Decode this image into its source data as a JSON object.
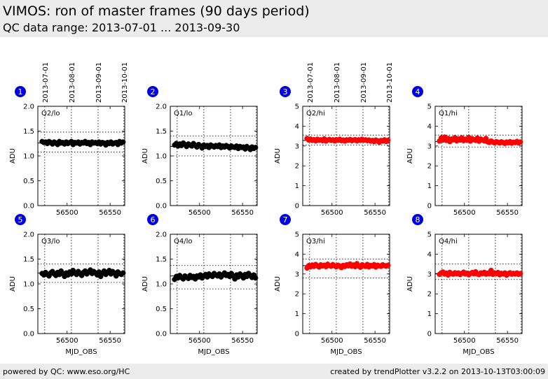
{
  "header": {
    "title": "VIMOS: ron of master frames (90 days period)",
    "subtitle": "QC data range: 2013-07-01 ... 2013-09-30"
  },
  "footer": {
    "left": "powered by QC: www.eso.org/HC",
    "right": "created by trendPlotter v3.2.2 on 2013-10-13T03:00:09"
  },
  "colors": {
    "badge": "#0000e6",
    "black_series": "#000000",
    "red_series": "#ff0000"
  },
  "chart_data": [
    {
      "type": "scatter",
      "badge": "1",
      "panel_label": "Q2/lo",
      "series_color": "#000000",
      "ylabel": "ADU",
      "xlabel": "",
      "ylim": [
        0,
        2.0
      ],
      "yticks": [
        "0.0",
        "0.5",
        "1.0",
        "1.5",
        "2.0"
      ],
      "xlim": [
        56466,
        56567
      ],
      "xticks": [
        56500,
        56550
      ],
      "xticklabels": [
        "56500",
        "56550"
      ],
      "top_date_labels": [
        "2013-07-01",
        "2013-08-01",
        "2013-09-01",
        "2013-10-01"
      ],
      "top_date_mjd": [
        56474,
        56505,
        56536,
        56566
      ],
      "median": 1.26,
      "upper": 1.48,
      "lower": 1.08,
      "x": [
        56471,
        56473,
        56475,
        56477,
        56479,
        56481,
        56483,
        56485,
        56487,
        56489,
        56491,
        56493,
        56495,
        56497,
        56499,
        56501,
        56503,
        56505,
        56507,
        56509,
        56511,
        56513,
        56515,
        56517,
        56519,
        56521,
        56523,
        56525,
        56527,
        56529,
        56531,
        56533,
        56535,
        56537,
        56539,
        56541,
        56543,
        56545,
        56547,
        56549,
        56551,
        56553,
        56555,
        56557,
        56559,
        56561,
        56563,
        56565
      ],
      "y": [
        1.29,
        1.27,
        1.28,
        1.25,
        1.29,
        1.27,
        1.24,
        1.28,
        1.26,
        1.23,
        1.29,
        1.26,
        1.27,
        1.24,
        1.28,
        1.25,
        1.27,
        1.29,
        1.23,
        1.27,
        1.26,
        1.28,
        1.24,
        1.27,
        1.26,
        1.29,
        1.25,
        1.27,
        1.23,
        1.28,
        1.26,
        1.27,
        1.25,
        1.28,
        1.24,
        1.27,
        1.26,
        1.22,
        1.27,
        1.25,
        1.28,
        1.24,
        1.26,
        1.27,
        1.23,
        1.29,
        1.26,
        1.28
      ]
    },
    {
      "type": "scatter",
      "badge": "2",
      "panel_label": "Q1/lo",
      "series_color": "#000000",
      "ylabel": "ADU",
      "xlabel": "",
      "ylim": [
        0,
        2.0
      ],
      "yticks": [
        "0.0",
        "0.5",
        "1.0",
        "1.5",
        "2.0"
      ],
      "xlim": [
        56466,
        56567
      ],
      "xticks": [
        56500,
        56550
      ],
      "xticklabels": [
        "56500",
        "56550"
      ],
      "top_date_labels": [],
      "top_date_mjd": [
        56474,
        56505,
        56536,
        56566
      ],
      "median": 1.19,
      "upper": 1.4,
      "lower": 1.0,
      "x": [
        56471,
        56473,
        56475,
        56477,
        56479,
        56481,
        56483,
        56485,
        56487,
        56489,
        56491,
        56493,
        56495,
        56497,
        56499,
        56501,
        56503,
        56505,
        56507,
        56509,
        56511,
        56513,
        56515,
        56517,
        56519,
        56521,
        56523,
        56525,
        56527,
        56529,
        56531,
        56533,
        56535,
        56537,
        56539,
        56541,
        56543,
        56545,
        56547,
        56549,
        56551,
        56553,
        56555,
        56557,
        56559,
        56561,
        56563,
        56565
      ],
      "y": [
        1.22,
        1.25,
        1.2,
        1.24,
        1.21,
        1.26,
        1.23,
        1.19,
        1.24,
        1.22,
        1.2,
        1.25,
        1.21,
        1.18,
        1.23,
        1.2,
        1.16,
        1.22,
        1.19,
        1.21,
        1.17,
        1.22,
        1.2,
        1.18,
        1.21,
        1.19,
        1.22,
        1.17,
        1.2,
        1.18,
        1.21,
        1.19,
        1.16,
        1.2,
        1.18,
        1.17,
        1.2,
        1.15,
        1.19,
        1.17,
        1.18,
        1.14,
        1.19,
        1.16,
        1.13,
        1.18,
        1.15,
        1.17
      ]
    },
    {
      "type": "scatter",
      "badge": "3",
      "panel_label": "Q2/hi",
      "series_color": "#ff0000",
      "ylabel": "ADU",
      "xlabel": "",
      "ylim": [
        0,
        5
      ],
      "yticks": [
        "0",
        "1",
        "2",
        "3",
        "4",
        "5"
      ],
      "xlim": [
        56466,
        56567
      ],
      "xticks": [
        56500,
        56550
      ],
      "xticklabels": [
        "56500",
        "56550"
      ],
      "top_date_labels": [
        "2013-07-01",
        "2013-08-01",
        "2013-09-01",
        "2013-10-01"
      ],
      "top_date_mjd": [
        56474,
        56505,
        56536,
        56566
      ],
      "median": 3.28,
      "upper": 3.55,
      "lower": 3.05,
      "x": [
        56471,
        56473,
        56475,
        56477,
        56479,
        56481,
        56483,
        56485,
        56487,
        56489,
        56491,
        56493,
        56495,
        56497,
        56499,
        56501,
        56503,
        56505,
        56507,
        56509,
        56511,
        56513,
        56515,
        56517,
        56519,
        56521,
        56523,
        56525,
        56527,
        56529,
        56531,
        56533,
        56535,
        56537,
        56539,
        56541,
        56543,
        56545,
        56547,
        56549,
        56551,
        56553,
        56555,
        56557,
        56559,
        56561,
        56563,
        56565
      ],
      "y": [
        3.38,
        3.3,
        3.35,
        3.28,
        3.32,
        3.26,
        3.34,
        3.29,
        3.31,
        3.27,
        3.36,
        3.25,
        3.3,
        3.33,
        3.28,
        3.31,
        3.26,
        3.32,
        3.29,
        3.34,
        3.27,
        3.3,
        3.25,
        3.31,
        3.29,
        3.33,
        3.27,
        3.3,
        3.32,
        3.26,
        3.31,
        3.28,
        3.34,
        3.29,
        3.31,
        3.27,
        3.3,
        3.25,
        3.28,
        3.22,
        3.3,
        3.26,
        3.19,
        3.28,
        3.25,
        3.31,
        3.23,
        3.29
      ]
    },
    {
      "type": "scatter",
      "badge": "4",
      "panel_label": "Q1/hi",
      "series_color": "#ff0000",
      "ylabel": "ADU",
      "xlabel": "",
      "ylim": [
        0,
        5
      ],
      "yticks": [
        "0",
        "1",
        "2",
        "3",
        "4",
        "5"
      ],
      "xlim": [
        56466,
        56567
      ],
      "xticks": [
        56500,
        56550
      ],
      "xticklabels": [
        "56500",
        "56550"
      ],
      "top_date_labels": [],
      "top_date_mjd": [
        56474,
        56505,
        56536,
        56566
      ],
      "median": 3.22,
      "upper": 3.55,
      "lower": 2.95,
      "x": [
        56471,
        56473,
        56475,
        56477,
        56479,
        56481,
        56483,
        56485,
        56487,
        56489,
        56491,
        56493,
        56495,
        56497,
        56499,
        56501,
        56503,
        56505,
        56507,
        56509,
        56511,
        56513,
        56515,
        56517,
        56519,
        56521,
        56523,
        56525,
        56527,
        56529,
        56531,
        56533,
        56535,
        56537,
        56539,
        56541,
        56543,
        56545,
        56547,
        56549,
        56551,
        56553,
        56555,
        56557,
        56559,
        56561,
        56563,
        56565
      ],
      "y": [
        3.25,
        3.4,
        3.3,
        3.45,
        3.28,
        3.38,
        3.22,
        3.35,
        3.31,
        3.42,
        3.26,
        3.36,
        3.3,
        3.41,
        3.27,
        3.34,
        3.29,
        3.43,
        3.25,
        3.37,
        3.32,
        3.28,
        3.4,
        3.24,
        3.35,
        3.3,
        3.26,
        3.38,
        3.21,
        3.18,
        3.25,
        3.2,
        3.16,
        3.22,
        3.19,
        3.15,
        3.21,
        3.17,
        3.13,
        3.2,
        3.16,
        3.22,
        3.14,
        3.19,
        3.17,
        3.23,
        3.15,
        3.2
      ]
    },
    {
      "type": "scatter",
      "badge": "5",
      "panel_label": "Q3/lo",
      "series_color": "#000000",
      "ylabel": "ADU",
      "xlabel": "MJD_OBS",
      "ylim": [
        0,
        2.0
      ],
      "yticks": [
        "0.0",
        "0.5",
        "1.0",
        "1.5",
        "2.0"
      ],
      "xlim": [
        56466,
        56567
      ],
      "xticks": [
        56500,
        56550
      ],
      "xticklabels": [
        "56500",
        "56550"
      ],
      "top_date_labels": [],
      "top_date_mjd": [
        56474,
        56505,
        56536,
        56566
      ],
      "median": 1.22,
      "upper": 1.4,
      "lower": 1.03,
      "x": [
        56471,
        56473,
        56475,
        56477,
        56479,
        56481,
        56483,
        56485,
        56487,
        56489,
        56491,
        56493,
        56495,
        56497,
        56499,
        56501,
        56503,
        56505,
        56507,
        56509,
        56511,
        56513,
        56515,
        56517,
        56519,
        56521,
        56523,
        56525,
        56527,
        56529,
        56531,
        56533,
        56535,
        56537,
        56539,
        56541,
        56543,
        56545,
        56547,
        56549,
        56551,
        56553,
        56555,
        56557,
        56559,
        56561,
        56563,
        56565
      ],
      "y": [
        1.21,
        1.18,
        1.23,
        1.19,
        1.16,
        1.22,
        1.25,
        1.2,
        1.17,
        1.23,
        1.19,
        1.26,
        1.21,
        1.15,
        1.22,
        1.18,
        1.24,
        1.2,
        1.27,
        1.22,
        1.19,
        1.25,
        1.21,
        1.17,
        1.23,
        1.26,
        1.2,
        1.24,
        1.28,
        1.21,
        1.25,
        1.22,
        1.18,
        1.24,
        1.15,
        1.21,
        1.26,
        1.19,
        1.23,
        1.27,
        1.2,
        1.25,
        1.22,
        1.16,
        1.24,
        1.21,
        1.19,
        1.22
      ]
    },
    {
      "type": "scatter",
      "badge": "6",
      "panel_label": "Q4/lo",
      "series_color": "#000000",
      "ylabel": "ADU",
      "xlabel": "MJD_OBS",
      "ylim": [
        0,
        2.0
      ],
      "yticks": [
        "0.0",
        "0.5",
        "1.0",
        "1.5",
        "2.0"
      ],
      "xlim": [
        56466,
        56567
      ],
      "xticks": [
        56500,
        56550
      ],
      "xticklabels": [
        "56500",
        "56550"
      ],
      "top_date_labels": [],
      "top_date_mjd": [
        56474,
        56505,
        56536,
        56566
      ],
      "median": 1.16,
      "upper": 1.37,
      "lower": 0.9,
      "x": [
        56471,
        56473,
        56475,
        56477,
        56479,
        56481,
        56483,
        56485,
        56487,
        56489,
        56491,
        56493,
        56495,
        56497,
        56499,
        56501,
        56503,
        56505,
        56507,
        56509,
        56511,
        56513,
        56515,
        56517,
        56519,
        56521,
        56523,
        56525,
        56527,
        56529,
        56531,
        56533,
        56535,
        56537,
        56539,
        56541,
        56543,
        56545,
        56547,
        56549,
        56551,
        56553,
        56555,
        56557,
        56559,
        56561,
        56563,
        56565
      ],
      "y": [
        1.09,
        1.15,
        1.12,
        1.17,
        1.13,
        1.1,
        1.16,
        1.14,
        1.11,
        1.17,
        1.13,
        1.15,
        1.1,
        1.16,
        1.14,
        1.18,
        1.12,
        1.16,
        1.19,
        1.14,
        1.2,
        1.17,
        1.15,
        1.21,
        1.18,
        1.16,
        1.2,
        1.14,
        1.18,
        1.22,
        1.17,
        1.19,
        1.15,
        1.21,
        1.16,
        1.1,
        1.18,
        1.14,
        1.2,
        1.17,
        1.12,
        1.19,
        1.15,
        1.21,
        1.17,
        1.13,
        1.18,
        1.12
      ]
    },
    {
      "type": "scatter",
      "badge": "7",
      "panel_label": "Q3/hi",
      "series_color": "#ff0000",
      "ylabel": "ADU",
      "xlabel": "MJD_OBS",
      "ylim": [
        0,
        5
      ],
      "yticks": [
        "0",
        "1",
        "2",
        "3",
        "4",
        "5"
      ],
      "xlim": [
        56466,
        56567
      ],
      "xticks": [
        56500,
        56550
      ],
      "xticklabels": [
        "56500",
        "56550"
      ],
      "top_date_labels": [],
      "top_date_mjd": [
        56474,
        56505,
        56536,
        56566
      ],
      "median": 3.42,
      "upper": 3.75,
      "lower": 2.8,
      "x": [
        56471,
        56473,
        56475,
        56477,
        56479,
        56481,
        56483,
        56485,
        56487,
        56489,
        56491,
        56493,
        56495,
        56497,
        56499,
        56501,
        56503,
        56505,
        56507,
        56509,
        56511,
        56513,
        56515,
        56517,
        56519,
        56521,
        56523,
        56525,
        56527,
        56529,
        56531,
        56533,
        56535,
        56537,
        56539,
        56541,
        56543,
        56545,
        56547,
        56549,
        56551,
        56553,
        56555,
        56557,
        56559,
        56561,
        56563,
        56565
      ],
      "y": [
        3.3,
        3.42,
        3.36,
        3.45,
        3.38,
        3.48,
        3.41,
        3.35,
        3.46,
        3.4,
        3.44,
        3.37,
        3.49,
        3.42,
        3.39,
        3.47,
        3.41,
        3.36,
        3.44,
        3.4,
        3.32,
        3.43,
        3.38,
        3.46,
        3.41,
        3.5,
        3.39,
        3.45,
        3.37,
        3.52,
        3.4,
        3.34,
        3.46,
        3.42,
        3.38,
        3.48,
        3.36,
        3.43,
        3.4,
        3.47,
        3.35,
        3.44,
        3.41,
        3.38,
        3.46,
        3.42,
        3.39,
        3.44
      ]
    },
    {
      "type": "scatter",
      "badge": "8",
      "panel_label": "Q4/hi",
      "series_color": "#ff0000",
      "ylabel": "ADU",
      "xlabel": "MJD_OBS",
      "ylim": [
        0,
        5
      ],
      "yticks": [
        "0",
        "1",
        "2",
        "3",
        "4",
        "5"
      ],
      "xlim": [
        56466,
        56567
      ],
      "xticks": [
        56500,
        56550
      ],
      "xticklabels": [
        "56500",
        "56550"
      ],
      "top_date_labels": [],
      "top_date_mjd": [
        56474,
        56505,
        56536,
        56566
      ],
      "median": 3.02,
      "upper": 3.5,
      "lower": 2.72,
      "x": [
        56471,
        56473,
        56475,
        56477,
        56479,
        56481,
        56483,
        56485,
        56487,
        56489,
        56491,
        56493,
        56495,
        56497,
        56499,
        56501,
        56503,
        56505,
        56507,
        56509,
        56511,
        56513,
        56515,
        56517,
        56519,
        56521,
        56523,
        56525,
        56527,
        56529,
        56531,
        56533,
        56535,
        56537,
        56539,
        56541,
        56543,
        56545,
        56547,
        56549,
        56551,
        56553,
        56555,
        56557,
        56559,
        56561,
        56563,
        56565
      ],
      "y": [
        2.98,
        3.05,
        3.1,
        3.0,
        3.04,
        2.95,
        3.08,
        3.02,
        2.99,
        3.06,
        3.01,
        3.05,
        2.97,
        3.03,
        3.09,
        3.0,
        3.04,
        2.96,
        3.02,
        3.07,
        3.01,
        3.11,
        3.0,
        2.97,
        3.05,
        3.02,
        3.08,
        2.99,
        3.04,
        3.01,
        3.18,
        2.98,
        3.05,
        3.02,
        3.07,
        2.96,
        3.03,
        3.0,
        3.05,
        2.94,
        3.02,
        3.06,
        2.99,
        3.03,
        3.0,
        3.05,
        2.98,
        3.02
      ]
    }
  ]
}
